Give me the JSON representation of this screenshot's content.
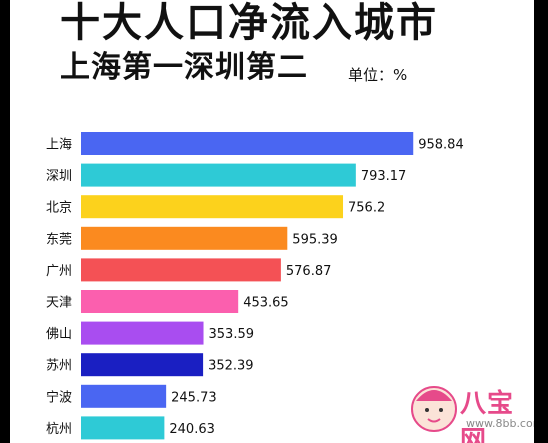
{
  "header": {
    "title": "十大人口净流入城市",
    "subtitle": "上海第一深圳第二",
    "unit": "单位：%"
  },
  "chart_data": {
    "type": "bar",
    "orientation": "horizontal",
    "categories": [
      "上海",
      "深圳",
      "北京",
      "东莞",
      "广州",
      "天津",
      "佛山",
      "苏州",
      "宁波",
      "杭州"
    ],
    "values": [
      958.84,
      793.17,
      756.2,
      595.39,
      576.87,
      453.65,
      353.59,
      352.39,
      245.73,
      240.63
    ],
    "value_labels": [
      "958.84",
      "793.17",
      "756.2",
      "595.39",
      "576.87",
      "453.65",
      "353.59",
      "352.39",
      "245.73",
      "240.63"
    ],
    "colors": [
      "#4a66f2",
      "#2ecad6",
      "#fcd21c",
      "#fb8a1f",
      "#f45155",
      "#fb5fae",
      "#a94df0",
      "#1a1fc2",
      "#4a66f2",
      "#2ecad6"
    ],
    "xlim": [
      0,
      1000
    ],
    "title": "十大人口净流入城市",
    "subtitle": "上海第一深圳第二",
    "grid": false
  },
  "watermark": {
    "brand": "八宝网",
    "url": "www.8bb.com"
  }
}
